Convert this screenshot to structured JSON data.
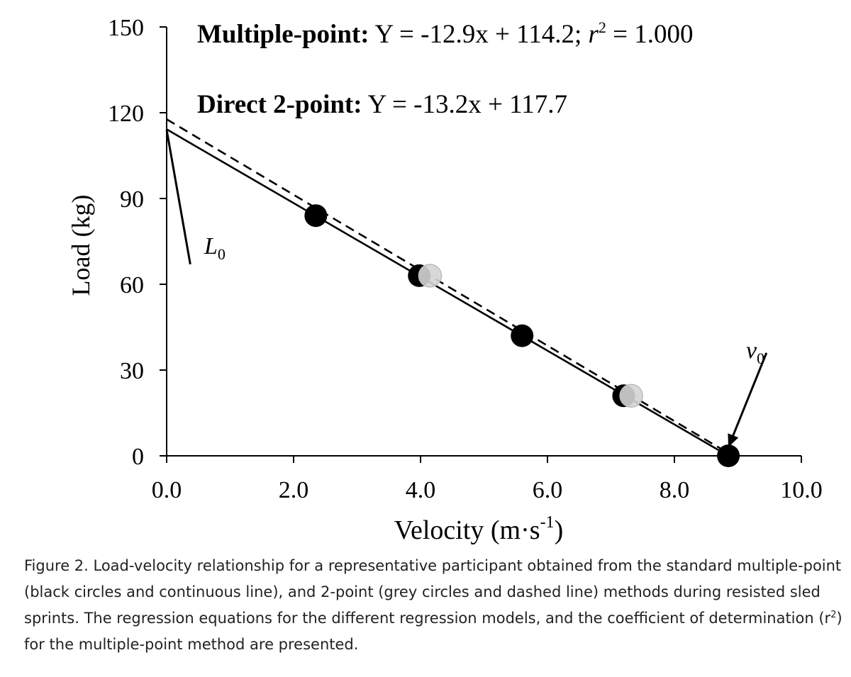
{
  "chart_data": {
    "type": "scatter",
    "xlabel": "Velocity (m·s⁻¹)",
    "ylabel": "Load (kg)",
    "xlim": [
      0,
      10
    ],
    "ylim": [
      0,
      150
    ],
    "x_ticks": [
      "0.0",
      "2.0",
      "4.0",
      "6.0",
      "8.0",
      "10.0"
    ],
    "y_ticks": [
      "0",
      "30",
      "60",
      "90",
      "120",
      "150"
    ],
    "x_tick_values": [
      0,
      2,
      4,
      6,
      8,
      10
    ],
    "y_tick_values": [
      0,
      30,
      60,
      90,
      120,
      150
    ],
    "grid": false,
    "series": [
      {
        "kind": "points",
        "color": "#000000",
        "points": [
          [
            2.35,
            84
          ],
          [
            3.98,
            63
          ],
          [
            5.6,
            42
          ],
          [
            7.2,
            21
          ],
          [
            8.85,
            0
          ]
        ]
      },
      {
        "kind": "points",
        "color": "#d4d4d4",
        "points": [
          [
            4.15,
            63
          ],
          [
            7.32,
            21
          ]
        ]
      },
      {
        "kind": "line",
        "style": "solid",
        "color": "#000000",
        "from": [
          0,
          114.2
        ],
        "to": [
          8.85,
          0
        ]
      },
      {
        "kind": "line",
        "style": "dashed",
        "color": "#000000",
        "from": [
          0,
          117.7
        ],
        "to": [
          8.92,
          0
        ]
      }
    ],
    "equations": {
      "multiple": {
        "bold": "Multiple-point:",
        "eq": " Y = -12.9x + 114.2; ",
        "r": "r",
        "sup": "2",
        "tail": " = 1.000"
      },
      "direct": {
        "bold": "Direct 2-point:",
        "eq": " Y = -13.2x + 117.7"
      }
    },
    "annotations": {
      "L0": {
        "main": "L",
        "sub": "0",
        "point": [
          0,
          114
        ],
        "text_at": [
          0.35,
          67
        ]
      },
      "v0": {
        "main": "v",
        "sub": "0",
        "point": [
          8.85,
          3
        ],
        "text_at": [
          9.45,
          36
        ]
      }
    }
  },
  "caption": {
    "text": "Figure 2. Load-velocity relationship for a representative participant obtained from the standard multiple-point (black circles and continuous line), and 2-point (grey circles and dashed line) methods during resisted sled sprints. The regression equations for the different regression models, and the coefficient of determination (r",
    "sup": "2",
    "tail": ") for the multiple-point method are presented."
  }
}
